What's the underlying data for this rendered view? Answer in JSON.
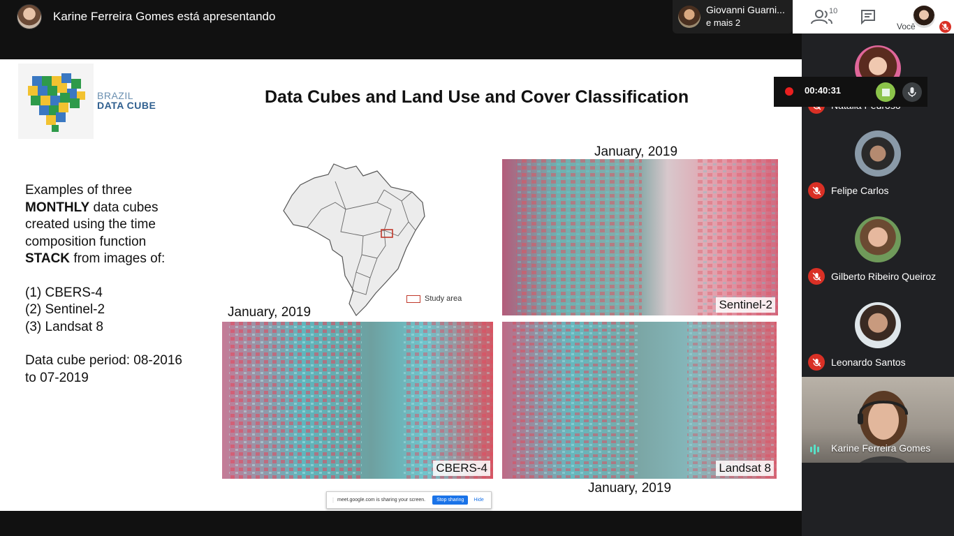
{
  "top_bar": {
    "presenter_text": "Karine Ferreira Gomes está apresentando",
    "others_name": "Giovanni Guarni...",
    "others_sub": "e mais 2"
  },
  "toolbar": {
    "participant_count": "10",
    "self_label": "Você"
  },
  "slide": {
    "logo_line1": "BRAZIL",
    "logo_line2": "DATA CUBE",
    "title": "Data Cubes and Land Use and Cover Classification",
    "desc": {
      "l1": "Examples of three",
      "l2_bold": "MONTHLY",
      "l2_rest": " data cubes",
      "l3": "created using the time",
      "l4": "composition function",
      "l5_bold": "STACK",
      "l5_rest": " from images of:",
      "l6": "(1) CBERS-4",
      "l7": "(2) Sentinel-2",
      "l8": "(3) Landsat 8",
      "l9": "Data cube period: 08-2016",
      "l10": "to 07-2019"
    },
    "study_area_label": "Study area",
    "images": [
      {
        "label": "January, 2019",
        "tag": "Sentinel-2"
      },
      {
        "label": "January, 2019",
        "tag": "CBERS-4"
      },
      {
        "label": "January, 2019",
        "tag": "Landsat 8"
      }
    ]
  },
  "share_bar": {
    "text": "meet.google.com is sharing your screen.",
    "stop_label": "Stop sharing",
    "hide_label": "Hide"
  },
  "recording": {
    "time": "00:40:31"
  },
  "participants": [
    {
      "name": "Natalia Pedroso"
    },
    {
      "name": "Felipe Carlos"
    },
    {
      "name": "Gilberto Ribeiro Queiroz"
    },
    {
      "name": "Leonardo Santos"
    }
  ],
  "speaker": {
    "name": "Karine Ferreira Gomes"
  },
  "colors": {
    "mic_muted": "#d93025",
    "rec_red": "#ea1f1f",
    "rec_stop": "#8bc34a",
    "speaking": "#58e0c7",
    "share_blue": "#1a73e8"
  }
}
